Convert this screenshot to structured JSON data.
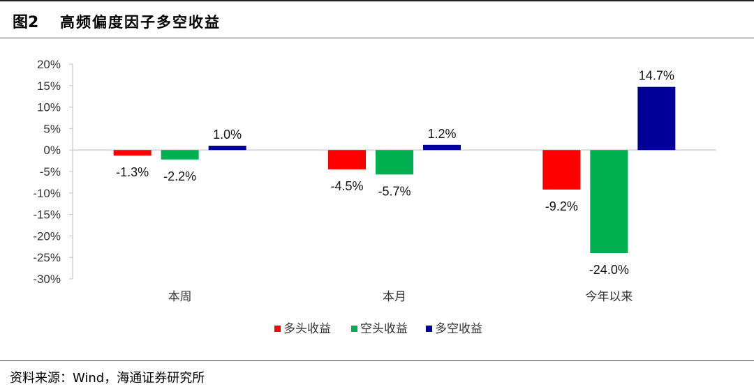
{
  "header": {
    "figure_number": "图2",
    "title": "高频偏度因子多空收益"
  },
  "footer": {
    "source": "资料来源：Wind，海通证券研究所"
  },
  "chart_data": {
    "type": "bar",
    "title": "高频偏度因子多空收益",
    "categories": [
      "本周",
      "本月",
      "今年以来"
    ],
    "series": [
      {
        "name": "多头收益",
        "color": "#ff0000",
        "values": [
          -1.3,
          -4.5,
          -9.2
        ],
        "labels": [
          "-1.3%",
          "-4.5%",
          "-9.2%"
        ]
      },
      {
        "name": "空头收益",
        "color": "#00b050",
        "values": [
          -2.2,
          -5.7,
          -24.0
        ],
        "labels": [
          "-2.2%",
          "-5.7%",
          "-24.0%"
        ]
      },
      {
        "name": "多空收益",
        "color": "#000099",
        "values": [
          1.0,
          1.2,
          14.7
        ],
        "labels": [
          "1.0%",
          "1.2%",
          "14.7%"
        ]
      }
    ],
    "yticks": [
      "20%",
      "15%",
      "10%",
      "5%",
      "0%",
      "-5%",
      "-10%",
      "-15%",
      "-20%",
      "-25%",
      "-30%"
    ],
    "ylim": [
      -30,
      20
    ],
    "grid": false,
    "legend_position": "bottom"
  }
}
